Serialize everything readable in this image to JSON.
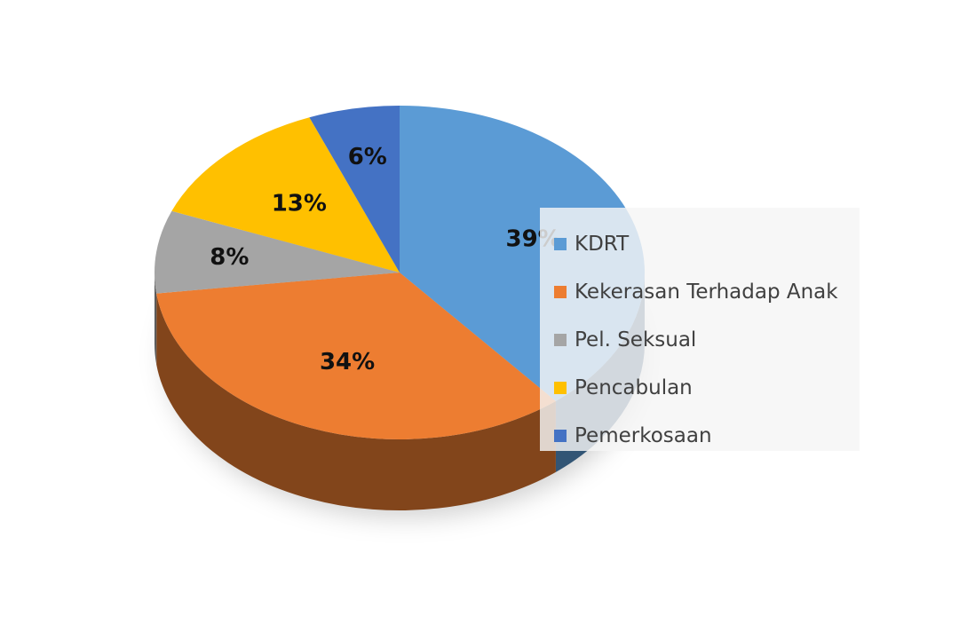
{
  "chart_data": {
    "type": "pie",
    "title": "",
    "categories": [
      "KDRT",
      "Kekerasan Terhadap Anak",
      "Pel. Seksual",
      "Pencabulan",
      "Pemerkosaan"
    ],
    "values": [
      39,
      34,
      8,
      13,
      6
    ],
    "labels": [
      "39%",
      "34%",
      "8%",
      "13%",
      "6%"
    ],
    "colors": [
      "#5B9BD5",
      "#ED7D31",
      "#A5A5A5",
      "#FFC000",
      "#4472C4"
    ],
    "style": "3d",
    "legend_position": "right"
  }
}
